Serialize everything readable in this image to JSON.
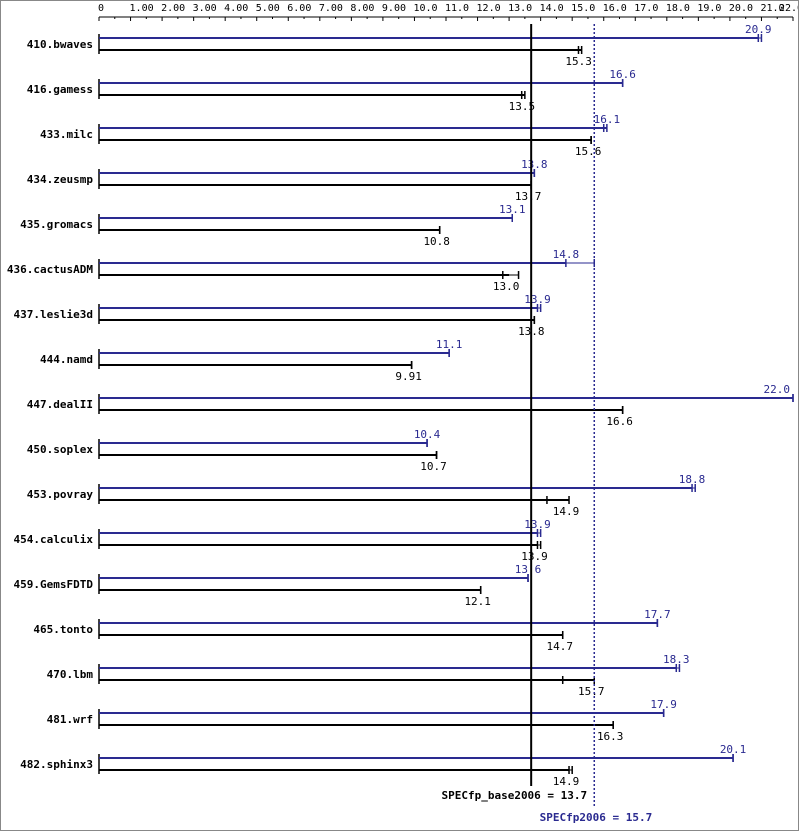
{
  "colors": {
    "base": "#000000",
    "peak": "#2a2a90",
    "background": "#ffffff"
  },
  "chart_data": {
    "type": "bar",
    "orientation": "horizontal",
    "xlim": [
      0,
      22
    ],
    "x_ticks": [
      "0",
      "1.00",
      "2.00",
      "3.00",
      "4.00",
      "5.00",
      "6.00",
      "7.00",
      "8.00",
      "9.00",
      "10.0",
      "11.0",
      "12.0",
      "13.0",
      "14.0",
      "15.0",
      "16.0",
      "17.0",
      "18.0",
      "19.0",
      "20.0",
      "21.0",
      "22.0"
    ],
    "categories": [
      "410.bwaves",
      "416.gamess",
      "433.milc",
      "434.zeusmp",
      "435.gromacs",
      "436.cactusADM",
      "437.leslie3d",
      "444.namd",
      "447.dealII",
      "450.soplex",
      "453.povray",
      "454.calculix",
      "459.GemsFDTD",
      "465.tonto",
      "470.lbm",
      "481.wrf",
      "482.sphinx3"
    ],
    "series": [
      {
        "key": "peak",
        "values": [
          20.9,
          16.6,
          16.1,
          13.8,
          13.1,
          14.8,
          13.9,
          11.1,
          22.0,
          10.4,
          18.8,
          13.9,
          13.6,
          17.7,
          18.3,
          17.9,
          20.1
        ],
        "labels": [
          "20.9",
          "16.6",
          "16.1",
          "13.8",
          "13.1",
          "14.8",
          "13.9",
          "11.1",
          "22.0",
          "10.4",
          "18.8",
          "13.9",
          "13.6",
          "17.7",
          "18.3",
          "17.9",
          "20.1"
        ],
        "runs": [
          [
            20.9,
            21.0
          ],
          [
            16.6,
            16.6
          ],
          [
            16.0,
            16.1
          ],
          [
            13.8,
            13.8
          ],
          [
            13.1,
            13.1
          ],
          [
            14.8,
            15.7
          ],
          [
            13.9,
            14.0
          ],
          [
            11.1,
            11.1
          ],
          [
            22.0,
            22.0
          ],
          [
            10.4,
            10.4
          ],
          [
            18.8,
            18.9
          ],
          [
            13.9,
            14.0
          ],
          [
            13.6,
            13.6
          ],
          [
            17.7,
            17.7
          ],
          [
            18.3,
            18.4
          ],
          [
            17.9,
            17.9
          ],
          [
            20.1,
            20.1
          ]
        ]
      },
      {
        "key": "base",
        "values": [
          15.3,
          13.5,
          15.6,
          13.7,
          10.8,
          13.0,
          13.8,
          9.91,
          16.6,
          10.7,
          14.9,
          13.9,
          12.1,
          14.7,
          15.7,
          16.3,
          14.9
        ],
        "labels": [
          "15.3",
          "13.5",
          "15.6",
          "13.7",
          "10.8",
          "13.0",
          "13.8",
          "9.91",
          "16.6",
          "10.7",
          "14.9",
          "13.9",
          "12.1",
          "14.7",
          "15.7",
          "16.3",
          "14.9"
        ],
        "runs": [
          [
            15.2,
            15.3
          ],
          [
            13.4,
            13.5
          ],
          [
            15.6,
            15.6
          ],
          [
            13.7,
            13.7
          ],
          [
            10.8,
            10.8
          ],
          [
            12.8,
            13.3
          ],
          [
            13.8,
            13.8
          ],
          [
            9.91,
            9.91
          ],
          [
            16.6,
            16.6
          ],
          [
            10.7,
            10.7
          ],
          [
            14.2,
            14.9
          ],
          [
            13.9,
            14.0
          ],
          [
            12.1,
            12.1
          ],
          [
            14.7,
            14.7
          ],
          [
            14.7,
            15.7
          ],
          [
            16.3,
            16.3
          ],
          [
            14.9,
            15.0
          ]
        ]
      }
    ],
    "reference_lines": [
      {
        "key": "base",
        "label": "SPECfp_base2006 = 13.7",
        "value": 13.7,
        "style": "solid"
      },
      {
        "key": "peak",
        "label": "SPECfp2006 = 15.7",
        "value": 15.7,
        "style": "dotted"
      }
    ]
  }
}
